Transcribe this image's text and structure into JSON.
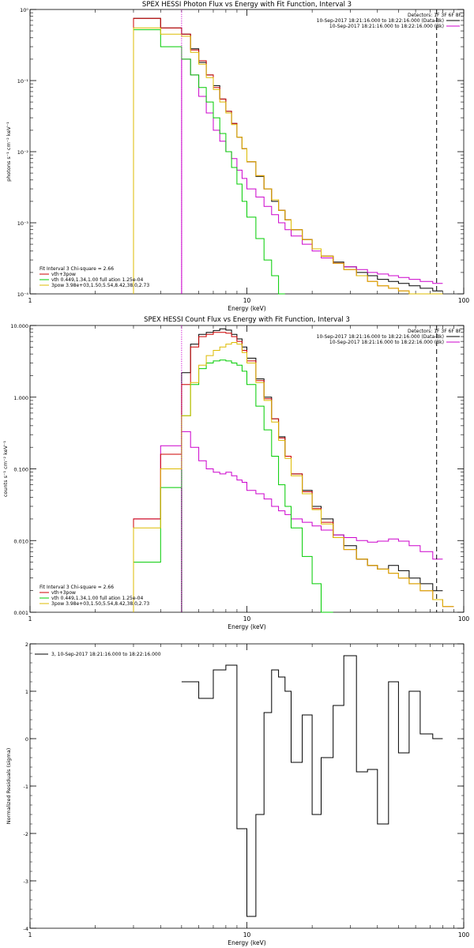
{
  "chart_data": [
    {
      "type": "line",
      "title": "SPEX HESSI Photon Flux vs Energy with Fit Function, Interval 3",
      "xlabel": "Energy (keV)",
      "ylabel": "photons s⁻¹ cm⁻² keV⁻¹",
      "x_scale": "log",
      "y_scale": "log",
      "xlim": [
        1,
        100
      ],
      "ylim": [
        0.0001,
        1
      ],
      "x_ticks": [
        {
          "v": 1,
          "label": "1"
        },
        {
          "v": 10,
          "label": "10"
        },
        {
          "v": 100,
          "label": "100"
        }
      ],
      "y_ticks": [
        {
          "v": 1,
          "label": "10⁰"
        },
        {
          "v": 0.1,
          "label": "10⁻¹"
        },
        {
          "v": 0.01,
          "label": "10⁻²"
        },
        {
          "v": 0.001,
          "label": "10⁻³"
        },
        {
          "v": 0.0001,
          "label": "10⁻⁴"
        }
      ],
      "vlines": [
        {
          "x": 5.0,
          "style": "dotted",
          "color": "#cc00cc"
        },
        {
          "x": 75,
          "style": "dashed",
          "color": "#000000"
        }
      ],
      "header": {
        "detectors": "Detectors: 1F 3F 6F 8F",
        "lines": [
          {
            "text": "10-Sep-2017 18:21:16.000 to 18:22:16.000 (Data-Bk)",
            "color": "#000000"
          },
          {
            "text": "10-Sep-2017 18:21:16.000 to 18:22:16.000 (Bk)",
            "color": "#cc00cc"
          }
        ]
      },
      "legend": {
        "title": "Fit Interval 3   Chi-square = 2.66",
        "items": [
          {
            "text": "vth+3pow",
            "color": "#cc0000"
          },
          {
            "text": "vth 0.449,1.34,1.00  full ation 1.25e-04",
            "color": "#00cc00"
          },
          {
            "text": "3pow 3.98e+03,1.50,5.54,8.42,38.0,2.73",
            "color": "#ddbb00"
          }
        ]
      },
      "edges": [
        3,
        4,
        5,
        5.5,
        6,
        6.5,
        7,
        7.5,
        8,
        8.5,
        9,
        9.5,
        10,
        11,
        12,
        13,
        14,
        15,
        16,
        18,
        20,
        22,
        25,
        28,
        32,
        36,
        40,
        45,
        50,
        56,
        63,
        72,
        80
      ],
      "series": [
        {
          "name": "Data-Bk",
          "color": "#000000",
          "values": [
            0.75,
            0.55,
            0.45,
            0.28,
            0.18,
            0.12,
            0.085,
            0.055,
            0.037,
            0.025,
            0.016,
            0.011,
            0.0072,
            0.0045,
            0.003,
            0.002,
            0.0015,
            0.0011,
            0.0008,
            0.00058,
            0.00043,
            0.00034,
            0.00028,
            0.00024,
            0.0002,
            0.00018,
            0.00016,
            0.00015,
            0.00014,
            0.00013,
            0.00012,
            0.00011
          ]
        },
        {
          "name": "Bk",
          "color": "#cc00cc",
          "values": [
            null,
            null,
            0.2,
            0.12,
            0.06,
            0.035,
            0.02,
            0.014,
            0.01,
            0.008,
            0.0055,
            0.0042,
            0.003,
            0.0023,
            0.0017,
            0.0013,
            0.001,
            0.0008,
            0.00065,
            0.0005,
            0.0004,
            0.00032,
            0.00027,
            0.00024,
            0.00022,
            0.0002,
            0.00019,
            0.00018,
            0.00017,
            0.00016,
            0.00015,
            0.00014
          ]
        },
        {
          "name": "vth+3pow",
          "color": "#cc0000",
          "values": [
            0.75,
            0.55,
            0.45,
            0.27,
            0.19,
            0.12,
            0.08,
            0.055,
            0.037,
            0.025,
            0.016,
            0.011,
            0.0072,
            0.0046,
            0.003,
            0.0021,
            0.0015,
            0.0011,
            0.0008,
            0.00058,
            0.00043,
            0.00034,
            0.00027,
            0.00022,
            0.00018,
            0.00015,
            0.00013,
            0.00012,
            0.00011,
            0.0001,
            0.0001,
            0.0001
          ]
        },
        {
          "name": "vth",
          "color": "#00cc00",
          "values": [
            0.52,
            0.3,
            0.2,
            0.12,
            0.08,
            0.05,
            0.03,
            0.018,
            0.01,
            0.006,
            0.0035,
            0.002,
            0.0012,
            0.0006,
            0.0003,
            0.00018,
            0.0001
          ]
        },
        {
          "name": "3pow",
          "color": "#ddbb00",
          "values": [
            0.55,
            0.45,
            0.42,
            0.25,
            0.17,
            0.11,
            0.075,
            0.05,
            0.035,
            0.024,
            0.016,
            0.011,
            0.0072,
            0.0046,
            0.003,
            0.0021,
            0.0015,
            0.0011,
            0.0008,
            0.00058,
            0.00043,
            0.00034,
            0.00027,
            0.00022,
            0.00018,
            0.00015,
            0.00013,
            0.00012,
            0.00011,
            0.0001,
            0.0001,
            0.0001
          ]
        }
      ]
    },
    {
      "type": "line",
      "title": "SPEX HESSI Count Flux vs Energy with Fit Function, Interval 3",
      "xlabel": "Energy (keV)",
      "ylabel": "counts s⁻¹ cm⁻² keV⁻¹",
      "x_scale": "log",
      "y_scale": "log",
      "xlim": [
        1,
        100
      ],
      "ylim": [
        0.001,
        10
      ],
      "x_ticks": [
        {
          "v": 1,
          "label": "1"
        },
        {
          "v": 10,
          "label": "10"
        },
        {
          "v": 100,
          "label": "100"
        }
      ],
      "y_ticks": [
        {
          "v": 10,
          "label": "10.000"
        },
        {
          "v": 1,
          "label": "1.000"
        },
        {
          "v": 0.1,
          "label": "0.100"
        },
        {
          "v": 0.01,
          "label": "0.010"
        },
        {
          "v": 0.001,
          "label": "0.001"
        }
      ],
      "vlines": [
        {
          "x": 5.0,
          "style": "dotted",
          "color": "#cc00cc"
        },
        {
          "x": 75,
          "style": "dashed",
          "color": "#000000"
        }
      ],
      "header": {
        "detectors": "Detectors: 1F 3F 6F 8F",
        "lines": [
          {
            "text": "10-Sep-2017 18:21:16.000 to 18:22:16.000 (Data-Bk)",
            "color": "#000000"
          },
          {
            "text": "10-Sep-2017 18:21:16.000 to 18:22:16.000 (Bk)",
            "color": "#cc00cc"
          }
        ]
      },
      "legend": {
        "title": "Fit Interval 3   Chi-square = 2.66",
        "items": [
          {
            "text": "vth+3pow",
            "color": "#cc0000"
          },
          {
            "text": "vth 0.449,1.34,1.00  full ation 1.25e-04",
            "color": "#00cc00"
          },
          {
            "text": "3pow 3.98e+03,1.50,5.54,8.42,38.0,2.73",
            "color": "#ddbb00"
          }
        ]
      },
      "edges": [
        3,
        4,
        5,
        5.5,
        6,
        6.5,
        7,
        7.5,
        8,
        8.5,
        9,
        9.5,
        10,
        11,
        12,
        13,
        14,
        15,
        16,
        18,
        20,
        22,
        25,
        28,
        32,
        36,
        40,
        45,
        50,
        56,
        63,
        72,
        80,
        90
      ],
      "series": [
        {
          "name": "Data-Bk",
          "color": "#000000",
          "values": [
            null,
            null,
            2.2,
            5.5,
            7.5,
            8.0,
            8.5,
            9.0,
            8.6,
            7.5,
            6.5,
            5.0,
            3.5,
            1.8,
            1.0,
            0.5,
            0.28,
            0.15,
            0.085,
            0.05,
            0.03,
            0.02,
            0.012,
            0.0085,
            0.0055,
            0.0045,
            0.004,
            0.0045,
            0.0038,
            0.003,
            0.0025,
            0.002
          ]
        },
        {
          "name": "Bk",
          "color": "#cc00cc",
          "values": [
            0.02,
            0.21,
            0.33,
            0.2,
            0.13,
            0.1,
            0.09,
            0.085,
            0.09,
            0.08,
            0.07,
            0.065,
            0.05,
            0.045,
            0.038,
            0.03,
            0.026,
            0.023,
            0.02,
            0.018,
            0.016,
            0.014,
            0.012,
            0.011,
            0.01,
            0.0095,
            0.0098,
            0.0105,
            0.0098,
            0.0085,
            0.007,
            0.0055
          ]
        },
        {
          "name": "vth+3pow",
          "color": "#cc0000",
          "values": [
            0.02,
            0.16,
            1.5,
            5.0,
            7.0,
            7.5,
            8.0,
            8.0,
            7.8,
            7.0,
            6.0,
            4.5,
            3.2,
            1.7,
            0.95,
            0.5,
            0.27,
            0.15,
            0.085,
            0.048,
            0.028,
            0.018,
            0.011,
            0.0075,
            0.0055,
            0.0045,
            0.004,
            0.0035,
            0.003,
            0.0025,
            0.002,
            0.0015,
            0.0012
          ]
        },
        {
          "name": "vth",
          "color": "#00cc00",
          "values": [
            0.005,
            0.055,
            0.55,
            1.5,
            2.5,
            3.0,
            3.2,
            3.3,
            3.2,
            3.0,
            2.8,
            2.3,
            1.5,
            0.75,
            0.35,
            0.15,
            0.06,
            0.03,
            0.015,
            0.006,
            0.0025,
            0.001
          ]
        },
        {
          "name": "3pow",
          "color": "#ddbb00",
          "values": [
            0.015,
            0.1,
            0.55,
            1.6,
            2.8,
            3.8,
            4.5,
            5.0,
            5.5,
            5.8,
            5.5,
            4.2,
            3.0,
            1.6,
            0.9,
            0.45,
            0.25,
            0.14,
            0.08,
            0.045,
            0.027,
            0.017,
            0.011,
            0.0075,
            0.0055,
            0.0045,
            0.004,
            0.0035,
            0.003,
            0.0025,
            0.002,
            0.0015,
            0.0012
          ]
        }
      ]
    },
    {
      "type": "line",
      "title": "",
      "xlabel": "Energy (keV)",
      "ylabel": "Normalized Residuals (sigma)",
      "x_scale": "log",
      "y_scale": "linear",
      "xlim": [
        1,
        100
      ],
      "ylim": [
        -4,
        2
      ],
      "x_ticks": [
        {
          "v": 1,
          "label": "1"
        },
        {
          "v": 10,
          "label": "10"
        },
        {
          "v": 100,
          "label": "100"
        }
      ],
      "y_ticks": [
        {
          "v": 2,
          "label": "2"
        },
        {
          "v": 1,
          "label": "1"
        },
        {
          "v": 0,
          "label": "0"
        },
        {
          "v": -1,
          "label": "-1"
        },
        {
          "v": -2,
          "label": "-2"
        },
        {
          "v": -3,
          "label": "-3"
        },
        {
          "v": -4,
          "label": "-4"
        }
      ],
      "legend": {
        "title": "",
        "items": [
          {
            "text": "3, 10-Sep-2017 18:21:16.000 to 18:22:16.000",
            "color": "#000000"
          }
        ]
      },
      "edges": [
        5,
        6,
        7,
        8,
        9,
        10,
        11,
        12,
        13,
        14,
        15,
        16,
        18,
        20,
        22,
        25,
        28,
        32,
        36,
        40,
        45,
        50,
        56,
        63,
        72,
        80
      ],
      "series": [
        {
          "name": "3, 10-Sep-2017 18:21:16.000 to 18:22:16.000",
          "color": "#000000",
          "values": [
            1.2,
            0.85,
            1.45,
            1.55,
            -1.9,
            -3.75,
            -1.6,
            0.55,
            1.45,
            1.3,
            1.0,
            -0.5,
            0.5,
            -1.6,
            -0.4,
            0.7,
            1.75,
            -0.7,
            -0.65,
            -1.8,
            1.2,
            -0.3,
            1.0,
            0.1,
            0.0
          ]
        }
      ]
    }
  ]
}
